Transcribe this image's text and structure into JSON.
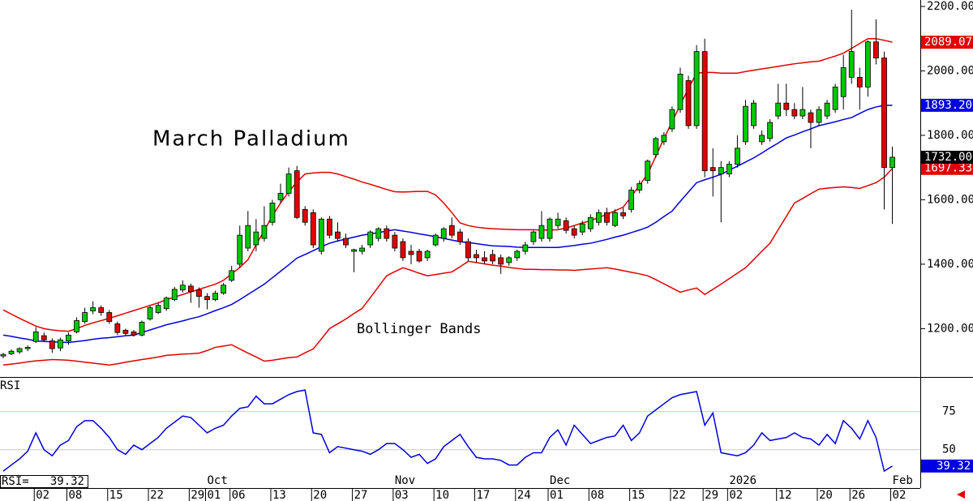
{
  "chart_data": [
    {
      "type": "candlestick",
      "title": "March Palladium",
      "annotation": "Bollinger Bands",
      "categories": [
        null,
        null,
        null,
        null,
        "02",
        null,
        null,
        null,
        "08",
        null,
        null,
        null,
        null,
        "15",
        null,
        null,
        null,
        null,
        "22",
        null,
        null,
        null,
        null,
        "29",
        null,
        "01",
        null,
        null,
        "06",
        null,
        null,
        null,
        null,
        "13",
        null,
        null,
        null,
        null,
        "20",
        null,
        null,
        null,
        null,
        "27",
        null,
        null,
        null,
        null,
        "03",
        null,
        null,
        null,
        null,
        "10",
        null,
        null,
        null,
        null,
        "17",
        null,
        null,
        null,
        null,
        "24",
        null,
        null,
        null,
        "01",
        null,
        null,
        null,
        null,
        "08",
        null,
        null,
        null,
        null,
        "15",
        null,
        null,
        null,
        null,
        "22",
        null,
        null,
        null,
        "29",
        null,
        null,
        "02",
        null,
        null,
        null,
        null,
        null,
        "12",
        null,
        null,
        null,
        null,
        "20",
        null,
        null,
        null,
        "26",
        null,
        null,
        null,
        null,
        "02"
      ],
      "months": [
        null,
        null,
        null,
        null,
        null,
        null,
        null,
        null,
        null,
        null,
        null,
        null,
        null,
        null,
        null,
        null,
        null,
        null,
        null,
        null,
        null,
        null,
        null,
        null,
        null,
        "Oct",
        null,
        null,
        null,
        null,
        null,
        null,
        null,
        null,
        null,
        null,
        null,
        null,
        null,
        null,
        null,
        null,
        null,
        null,
        null,
        null,
        null,
        null,
        "Nov",
        null,
        null,
        null,
        null,
        null,
        null,
        null,
        null,
        null,
        null,
        null,
        null,
        null,
        null,
        null,
        null,
        null,
        null,
        "Dec",
        null,
        null,
        null,
        null,
        null,
        null,
        null,
        null,
        null,
        null,
        null,
        null,
        null,
        null,
        null,
        null,
        null,
        null,
        null,
        null,
        null,
        "2026",
        null,
        null,
        null,
        null,
        null,
        null,
        null,
        null,
        null,
        null,
        null,
        null,
        null,
        null,
        null,
        null,
        null,
        null,
        null,
        "Feb"
      ],
      "candles": {
        "open": [
          1115,
          1122,
          1128,
          1138,
          1160,
          1178,
          1162,
          1140,
          1162,
          1190,
          1222,
          1255,
          1265,
          1250,
          1215,
          1195,
          1190,
          1180,
          1230,
          1250,
          1262,
          1290,
          1320,
          1332,
          1320,
          1300,
          1290,
          1310,
          1350,
          1400,
          1450,
          1460,
          1480,
          1530,
          1600,
          1620,
          1690,
          1570,
          1560,
          1440,
          1540,
          1500,
          1480,
          1440,
          1440,
          1460,
          1480,
          1510,
          1490,
          1470,
          1440,
          1440,
          1420,
          1460,
          1480,
          1520,
          1500,
          1470,
          1430,
          1420,
          1430,
          1420,
          1405,
          1420,
          1440,
          1470,
          1480,
          1480,
          1520,
          1535,
          1510,
          1500,
          1510,
          1530,
          1560,
          1520,
          1560,
          1570,
          1630,
          1660,
          1740,
          1780,
          1820,
          1880,
          1970,
          1830,
          2060,
          1700,
          1680,
          1680,
          1710,
          1780,
          1830,
          1780,
          1790,
          1860,
          1900,
          1880,
          1860,
          1870,
          1840,
          1860,
          1880,
          1920,
          1980,
          1980,
          1950,
          2090,
          2040,
          1700
        ],
        "high": [
          1125,
          1135,
          1142,
          1148,
          1205,
          1188,
          1170,
          1172,
          1188,
          1235,
          1265,
          1285,
          1272,
          1258,
          1222,
          1200,
          1196,
          1225,
          1270,
          1280,
          1300,
          1330,
          1350,
          1340,
          1328,
          1310,
          1318,
          1342,
          1395,
          1520,
          1565,
          1540,
          1580,
          1600,
          1650,
          1700,
          1705,
          1580,
          1570,
          1545,
          1550,
          1530,
          1495,
          1448,
          1460,
          1505,
          1515,
          1520,
          1500,
          1480,
          1460,
          1448,
          1445,
          1495,
          1515,
          1545,
          1510,
          1480,
          1445,
          1440,
          1445,
          1430,
          1425,
          1445,
          1470,
          1505,
          1565,
          1545,
          1560,
          1545,
          1520,
          1535,
          1555,
          1570,
          1575,
          1570,
          1575,
          1640,
          1660,
          1725,
          1795,
          1810,
          1890,
          2010,
          1985,
          2080,
          2100,
          1760,
          1720,
          1720,
          1800,
          1910,
          1910,
          1815,
          1850,
          1960,
          1960,
          1900,
          1950,
          1880,
          1890,
          1910,
          1960,
          2050,
          2190,
          2010,
          2095,
          2160,
          2060,
          1765
        ],
        "low": [
          1108,
          1118,
          1122,
          1130,
          1155,
          1160,
          1125,
          1130,
          1150,
          1185,
          1215,
          1245,
          1240,
          1215,
          1180,
          1178,
          1175,
          1176,
          1225,
          1245,
          1255,
          1285,
          1312,
          1280,
          1265,
          1260,
          1285,
          1305,
          1345,
          1390,
          1440,
          1440,
          1470,
          1520,
          1590,
          1610,
          1540,
          1520,
          1450,
          1430,
          1480,
          1470,
          1450,
          1375,
          1430,
          1450,
          1470,
          1470,
          1440,
          1410,
          1400,
          1405,
          1410,
          1455,
          1470,
          1480,
          1460,
          1410,
          1405,
          1400,
          1400,
          1370,
          1395,
          1410,
          1430,
          1460,
          1470,
          1470,
          1510,
          1495,
          1480,
          1490,
          1500,
          1520,
          1520,
          1515,
          1540,
          1560,
          1620,
          1650,
          1730,
          1770,
          1810,
          1870,
          1820,
          1820,
          1670,
          1610,
          1530,
          1670,
          1700,
          1770,
          1820,
          1770,
          1780,
          1850,
          1860,
          1850,
          1850,
          1760,
          1830,
          1850,
          1870,
          1880,
          1960,
          1880,
          1920,
          2020,
          1570,
          1525
        ],
        "close": [
          1120,
          1130,
          1138,
          1142,
          1190,
          1165,
          1138,
          1165,
          1180,
          1225,
          1250,
          1265,
          1250,
          1222,
          1188,
          1185,
          1180,
          1220,
          1265,
          1272,
          1295,
          1322,
          1335,
          1315,
          1300,
          1290,
          1310,
          1335,
          1380,
          1490,
          1520,
          1500,
          1520,
          1590,
          1620,
          1680,
          1545,
          1530,
          1460,
          1540,
          1490,
          1480,
          1460,
          1445,
          1450,
          1500,
          1510,
          1480,
          1450,
          1420,
          1430,
          1410,
          1440,
          1490,
          1510,
          1490,
          1470,
          1420,
          1420,
          1410,
          1410,
          1400,
          1420,
          1440,
          1460,
          1500,
          1520,
          1540,
          1540,
          1505,
          1490,
          1525,
          1545,
          1560,
          1530,
          1560,
          1550,
          1630,
          1650,
          1720,
          1790,
          1800,
          1880,
          1990,
          1830,
          2060,
          1690,
          1690,
          1700,
          1710,
          1760,
          1890,
          1900,
          1800,
          1840,
          1900,
          1880,
          1860,
          1880,
          1840,
          1880,
          1900,
          1950,
          2010,
          2060,
          1950,
          2090,
          2040,
          1700,
          1732
        ]
      },
      "up_color": "#00c800",
      "down_color": "#e00000",
      "close_label": "1732.00",
      "close_color": "#000000",
      "series": [
        {
          "color": "#e00000",
          "last_label": "2089.07",
          "values": [
            1258,
            1245,
            1232,
            1220,
            1208,
            1200,
            1196,
            1193,
            1192,
            1200,
            1210,
            1218,
            1225,
            1232,
            1240,
            1248,
            1256,
            1264,
            1272,
            1280,
            1290,
            1298,
            1306,
            1314,
            1322,
            1330,
            1338,
            1350,
            1370,
            1390,
            1414,
            1460,
            1505,
            1550,
            1590,
            1625,
            1655,
            1680,
            1683,
            1685,
            1685,
            1680,
            1672,
            1664,
            1655,
            1648,
            1640,
            1632,
            1625,
            1624,
            1625,
            1626,
            1626,
            1615,
            1590,
            1560,
            1528,
            1520,
            1515,
            1512,
            1510,
            1509,
            1508,
            1507,
            1507,
            1507,
            1506,
            1506,
            1507,
            1512,
            1520,
            1528,
            1535,
            1545,
            1555,
            1566,
            1577,
            1610,
            1645,
            1680,
            1735,
            1790,
            1842,
            1895,
            1945,
            1993,
            1995,
            1995,
            1993,
            1993,
            1993,
            1998,
            2002,
            2006,
            2010,
            2014,
            2018,
            2022,
            2025,
            2028,
            2030,
            2038,
            2046,
            2055,
            2070,
            2085,
            2100,
            2100,
            2095,
            2089.07
          ]
        },
        {
          "color": "#0000e0",
          "last_label": "1893.20",
          "values": [
            1180,
            1176,
            1171,
            1167,
            1162,
            1160,
            1159,
            1158,
            1157,
            1160,
            1163,
            1167,
            1170,
            1172,
            1175,
            1178,
            1180,
            1188,
            1196,
            1204,
            1212,
            1218,
            1224,
            1231,
            1237,
            1246,
            1256,
            1265,
            1275,
            1290,
            1306,
            1322,
            1338,
            1358,
            1378,
            1398,
            1419,
            1430,
            1442,
            1454,
            1465,
            1472,
            1478,
            1484,
            1490,
            1494,
            1498,
            1503,
            1507,
            1503,
            1499,
            1494,
            1490,
            1485,
            1480,
            1475,
            1470,
            1467,
            1464,
            1460,
            1457,
            1456,
            1455,
            1453,
            1452,
            1452,
            1452,
            1452,
            1452,
            1455,
            1458,
            1462,
            1465,
            1471,
            1477,
            1484,
            1490,
            1498,
            1506,
            1515,
            1530,
            1548,
            1565,
            1595,
            1624,
            1653,
            1662,
            1670,
            1679,
            1692,
            1704,
            1717,
            1730,
            1745,
            1761,
            1776,
            1792,
            1801,
            1811,
            1820,
            1830,
            1836,
            1842,
            1849,
            1855,
            1868,
            1880,
            1888,
            1893,
            1893.2
          ]
        },
        {
          "color": "#e00000",
          "last_label": "1697.33",
          "values": [
            1087,
            1090,
            1093,
            1097,
            1100,
            1102,
            1104,
            1103,
            1102,
            1099,
            1096,
            1093,
            1090,
            1087,
            1091,
            1096,
            1100,
            1104,
            1108,
            1112,
            1117,
            1119,
            1121,
            1122,
            1124,
            1132,
            1142,
            1146,
            1150,
            1137,
            1124,
            1112,
            1099,
            1102,
            1106,
            1110,
            1112,
            1125,
            1137,
            1168,
            1200,
            1215,
            1230,
            1247,
            1263,
            1296,
            1330,
            1364,
            1377,
            1389,
            1381,
            1372,
            1364,
            1368,
            1372,
            1376,
            1392,
            1409,
            1405,
            1401,
            1397,
            1394,
            1390,
            1387,
            1384,
            1384,
            1383,
            1383,
            1382,
            1382,
            1381,
            1383,
            1385,
            1387,
            1389,
            1385,
            1380,
            1375,
            1370,
            1364,
            1352,
            1339,
            1326,
            1313,
            1320,
            1326,
            1306,
            1322,
            1338,
            1355,
            1372,
            1389,
            1414,
            1440,
            1465,
            1507,
            1548,
            1590,
            1604,
            1619,
            1633,
            1636,
            1638,
            1640,
            1638,
            1635,
            1644,
            1653,
            1670,
            1697.33
          ]
        }
      ],
      "ylim": [
        1050,
        2220
      ],
      "yticks": [
        {
          "value": 1200,
          "label": "1200.00"
        },
        {
          "value": 1400,
          "label": "1400.00"
        },
        {
          "value": 1600,
          "label": "1600.00"
        },
        {
          "value": 1800,
          "label": "1800.00"
        },
        {
          "value": 2000,
          "label": "2000.00"
        },
        {
          "value": 2200,
          "label": "2200.00"
        }
      ]
    },
    {
      "type": "line",
      "title": "RSI",
      "readout_label": "RSI=",
      "series": [
        {
          "color": "#0000e0",
          "last_label": "39.32",
          "values": [
            36,
            40,
            44,
            49,
            61,
            50,
            46,
            53,
            56,
            65,
            69,
            69,
            64,
            58,
            50,
            47,
            53,
            50,
            54,
            58,
            64,
            68,
            72,
            71,
            66,
            61,
            64,
            66,
            72,
            77,
            78,
            85,
            80,
            80,
            83,
            86,
            88,
            89,
            61,
            60,
            48,
            52,
            51,
            50,
            49,
            47,
            50,
            54,
            54,
            50,
            45,
            47,
            41,
            44,
            52,
            56,
            60,
            52,
            45,
            44,
            44,
            43,
            40,
            40,
            45,
            48,
            48,
            58,
            63,
            53,
            66,
            60,
            54,
            56,
            58,
            59,
            66,
            56,
            61,
            72,
            76,
            80,
            84,
            86,
            87,
            88,
            66,
            74,
            48,
            47,
            46,
            48,
            53,
            61,
            56,
            57,
            58,
            61,
            58,
            57,
            53,
            60,
            54,
            69,
            64,
            57,
            69,
            58,
            36,
            39.32
          ]
        }
      ],
      "ylim": [
        26,
        97
      ],
      "yticks": [
        50,
        75
      ],
      "grid": true,
      "grid_colors": [
        "#c8c8c8",
        "#f0c8b8"
      ]
    }
  ]
}
